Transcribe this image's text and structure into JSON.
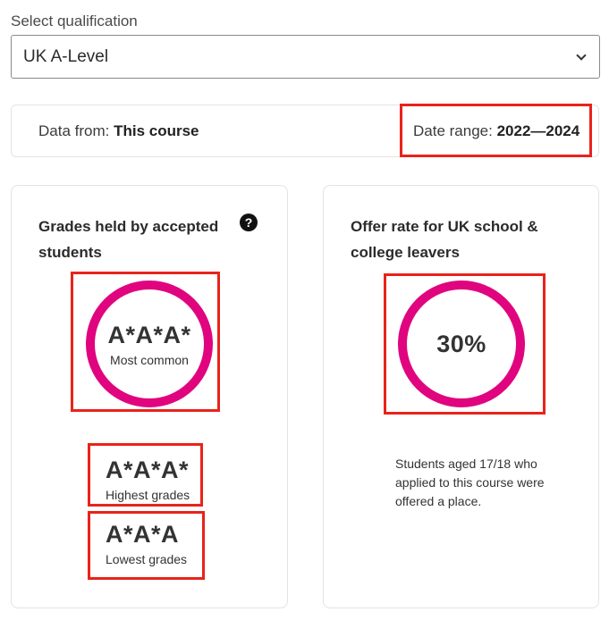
{
  "qualification": {
    "label": "Select qualification",
    "selected": "UK A-Level"
  },
  "data_bar": {
    "data_from_label": "Data from:",
    "data_from_value": "This course",
    "date_range_label": "Date range:",
    "date_range_value": "2022—2024"
  },
  "grades_card": {
    "title": "Grades held by accepted students",
    "help_glyph": "?",
    "most_common_value": "A*A*A*",
    "most_common_label": "Most common",
    "highest_value": "A*A*A*",
    "highest_label": "Highest grades",
    "lowest_value": "A*A*A",
    "lowest_label": "Lowest grades"
  },
  "offer_card": {
    "title": "Offer rate for UK school & college leavers",
    "rate_value": "30%",
    "description": "Students aged 17/18 who applied to this course were offered a place."
  },
  "colors": {
    "ring": "#e0057f",
    "highlight": "#e8231b"
  }
}
